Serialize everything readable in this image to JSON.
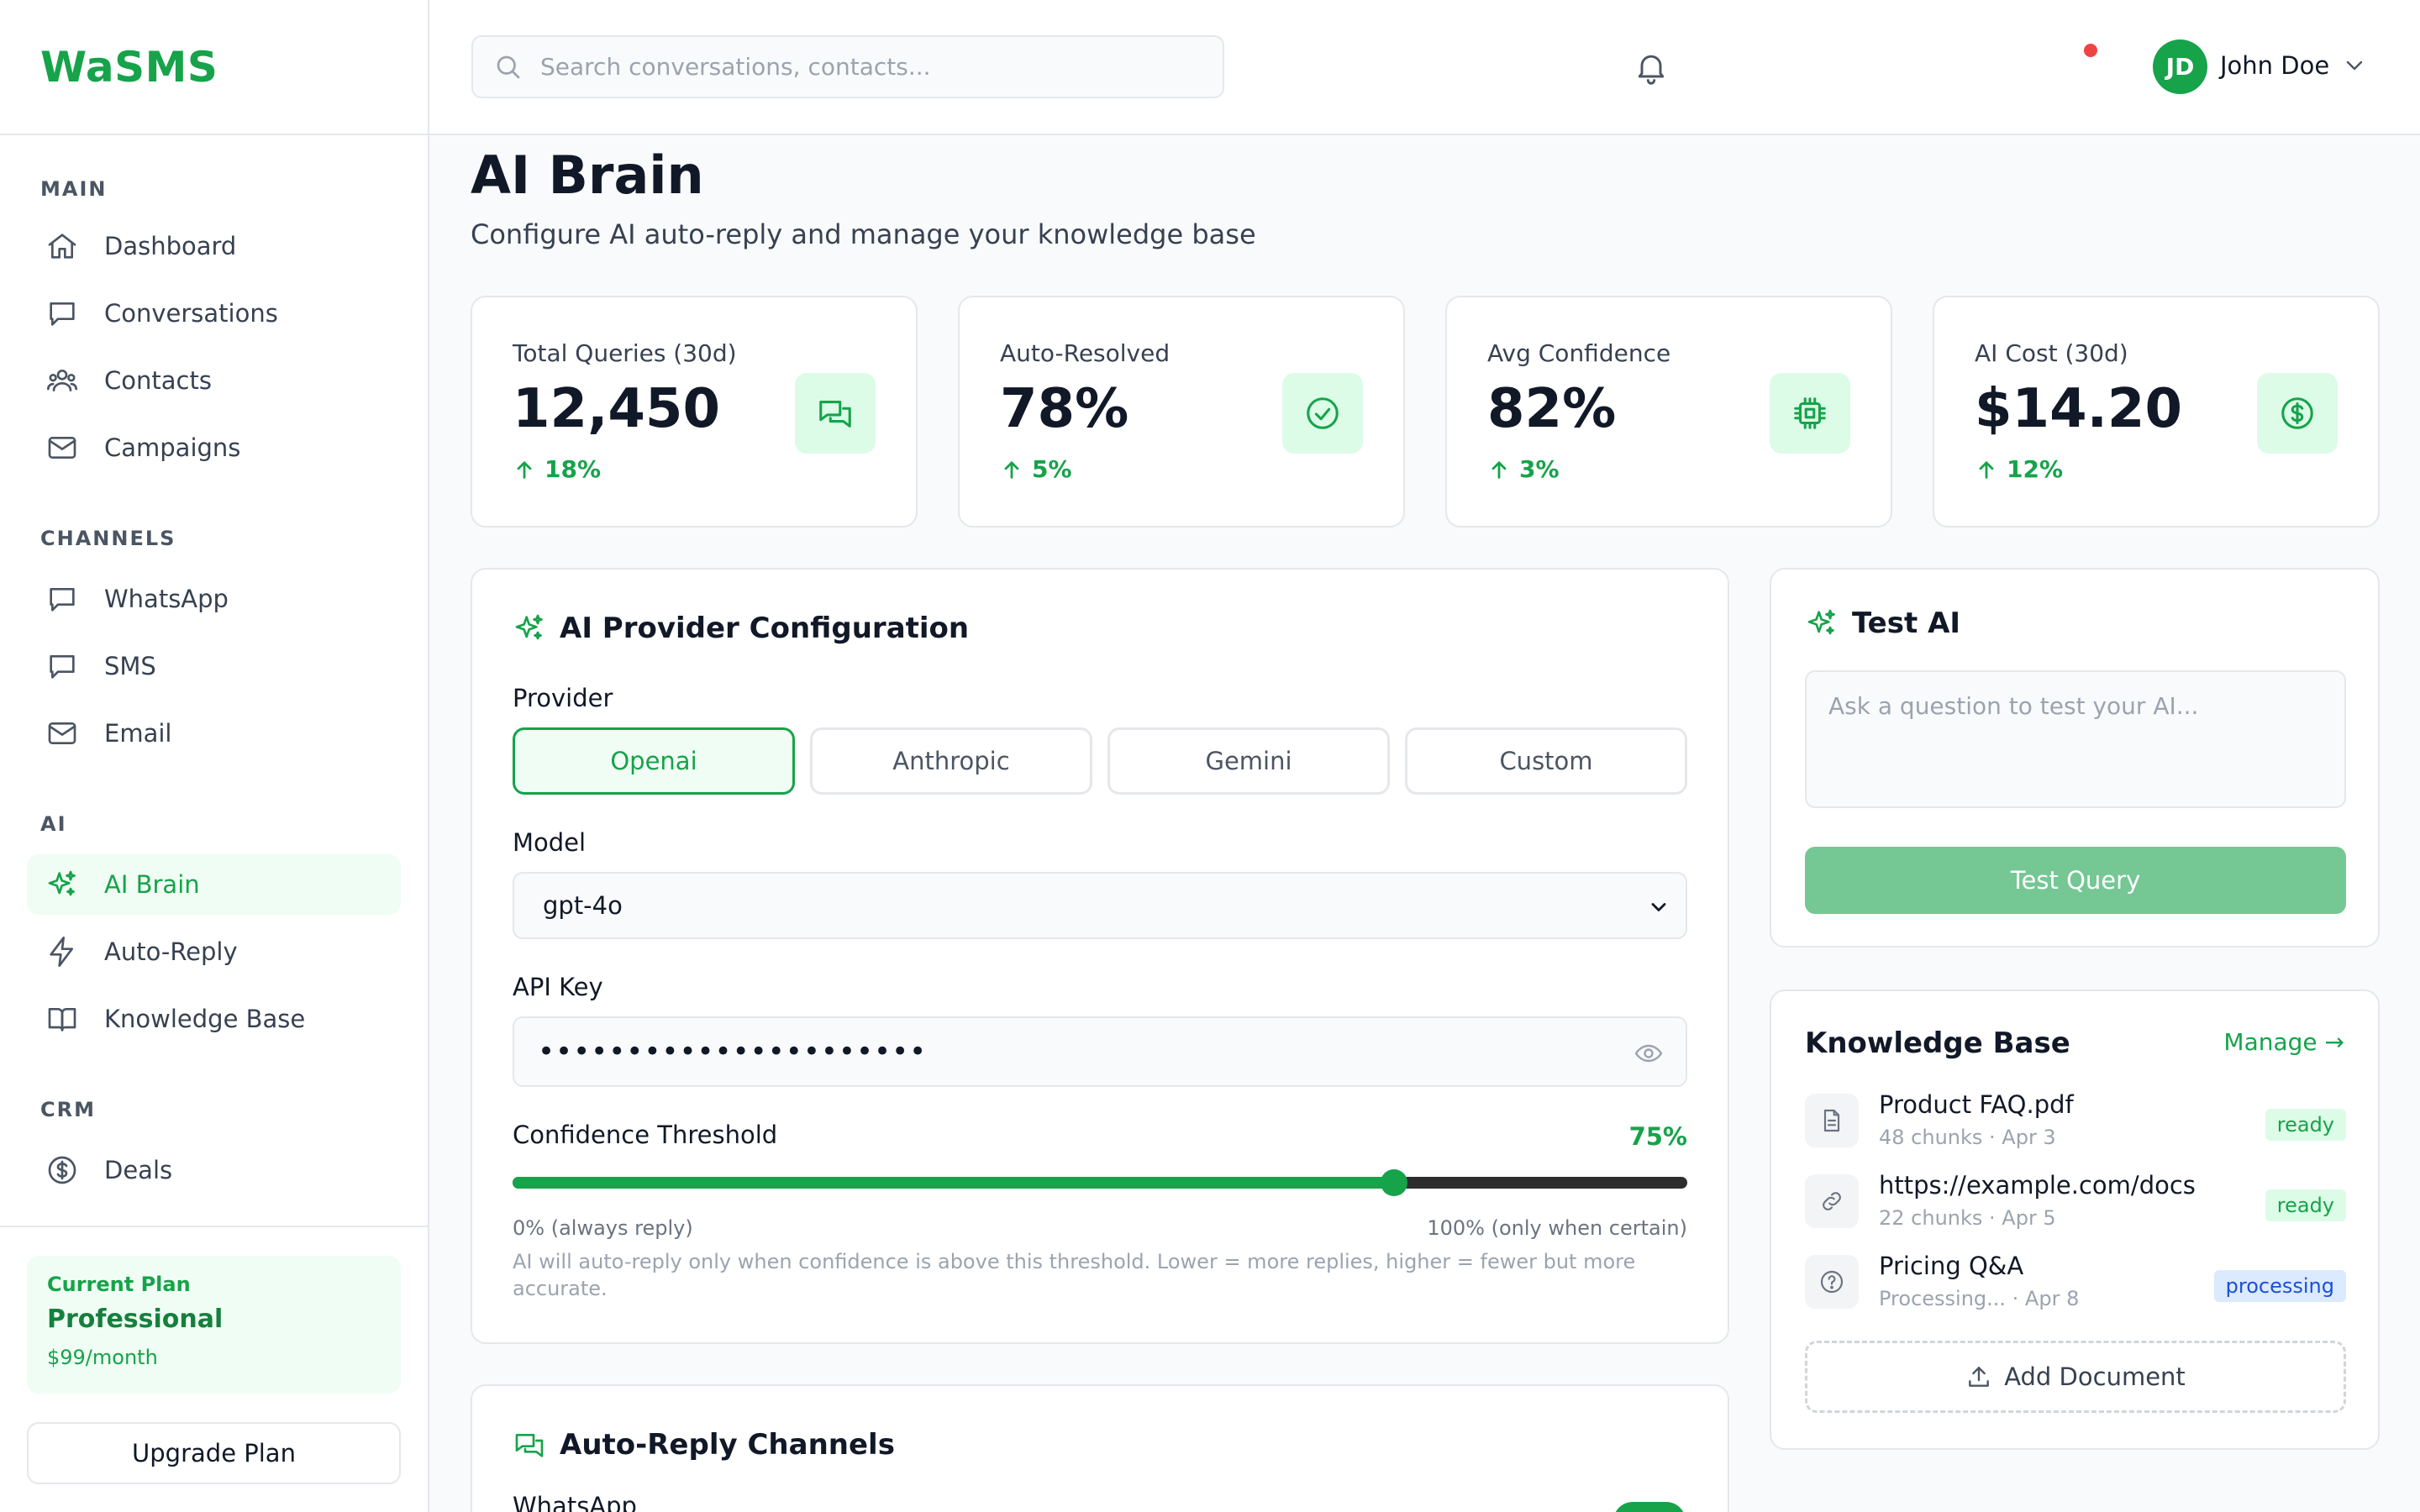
{
  "app": {
    "name": "WaSMS"
  },
  "sidebar": {
    "sections": [
      {
        "title": "MAIN",
        "items": [
          {
            "label": "Dashboard",
            "icon": "home-icon"
          },
          {
            "label": "Conversations",
            "icon": "chat-icon"
          },
          {
            "label": "Contacts",
            "icon": "users-icon"
          },
          {
            "label": "Campaigns",
            "icon": "mail-icon"
          }
        ]
      },
      {
        "title": "CHANNELS",
        "items": [
          {
            "label": "WhatsApp",
            "icon": "chat-icon"
          },
          {
            "label": "SMS",
            "icon": "chat-icon"
          },
          {
            "label": "Email",
            "icon": "mail-icon"
          }
        ]
      },
      {
        "title": "AI",
        "items": [
          {
            "label": "AI Brain",
            "icon": "sparkles-icon",
            "active": true
          },
          {
            "label": "Auto-Reply",
            "icon": "bolt-icon"
          },
          {
            "label": "Knowledge Base",
            "icon": "book-icon"
          }
        ]
      },
      {
        "title": "CRM",
        "items": [
          {
            "label": "Deals",
            "icon": "dollar-icon"
          }
        ]
      }
    ],
    "plan": {
      "label": "Current Plan",
      "name": "Professional",
      "price": "$99/month"
    },
    "upgrade_label": "Upgrade Plan"
  },
  "header": {
    "search_placeholder": "Search conversations, contacts...",
    "user": {
      "initials": "JD",
      "name": "John Doe"
    }
  },
  "page": {
    "title": "AI Brain",
    "subtitle": "Configure AI auto-reply and manage your knowledge base"
  },
  "stats": [
    {
      "label": "Total Queries (30d)",
      "value": "12,450",
      "change": "18%",
      "icon": "chat-bubbles-icon"
    },
    {
      "label": "Auto-Resolved",
      "value": "78%",
      "change": "5%",
      "icon": "check-circle-icon"
    },
    {
      "label": "Avg Confidence",
      "value": "82%",
      "change": "3%",
      "icon": "chip-icon"
    },
    {
      "label": "AI Cost (30d)",
      "value": "$14.20",
      "change": "12%",
      "icon": "dollar-icon"
    }
  ],
  "provider_config": {
    "title": "AI Provider Configuration",
    "provider_label": "Provider",
    "providers": [
      "Openai",
      "Anthropic",
      "Gemini",
      "Custom"
    ],
    "selected_provider": "Openai",
    "model_label": "Model",
    "model_value": "gpt-4o",
    "api_key_label": "API Key",
    "api_key_value": "••••••••••••••••••••••",
    "threshold_label": "Confidence Threshold",
    "threshold_value": "75%",
    "threshold_fraction": 0.75,
    "range_min": "0% (always reply)",
    "range_max": "100% (only when certain)",
    "help": "AI will auto-reply only when confidence is above this threshold. Lower = more replies, higher = fewer but more accurate."
  },
  "test_ai": {
    "title": "Test AI",
    "placeholder": "Ask a question to test your AI...",
    "button": "Test Query"
  },
  "knowledge_base": {
    "title": "Knowledge Base",
    "manage": "Manage →",
    "docs": [
      {
        "name": "Product FAQ.pdf",
        "meta": "48 chunks · Apr 3",
        "status": "ready",
        "icon": "file-icon"
      },
      {
        "name": "https://example.com/docs",
        "meta": "22 chunks · Apr 5",
        "status": "ready",
        "icon": "link-icon"
      },
      {
        "name": "Pricing Q&A",
        "meta": "Processing... · Apr 8",
        "status": "processing",
        "icon": "question-icon"
      }
    ],
    "add_label": "Add Document"
  },
  "auto_reply": {
    "title": "Auto-Reply Channels",
    "first_channel": "WhatsApp"
  },
  "colors": {
    "accent": "#16a34a",
    "accent_light": "#dcfce7",
    "notification": "#ef4444"
  }
}
